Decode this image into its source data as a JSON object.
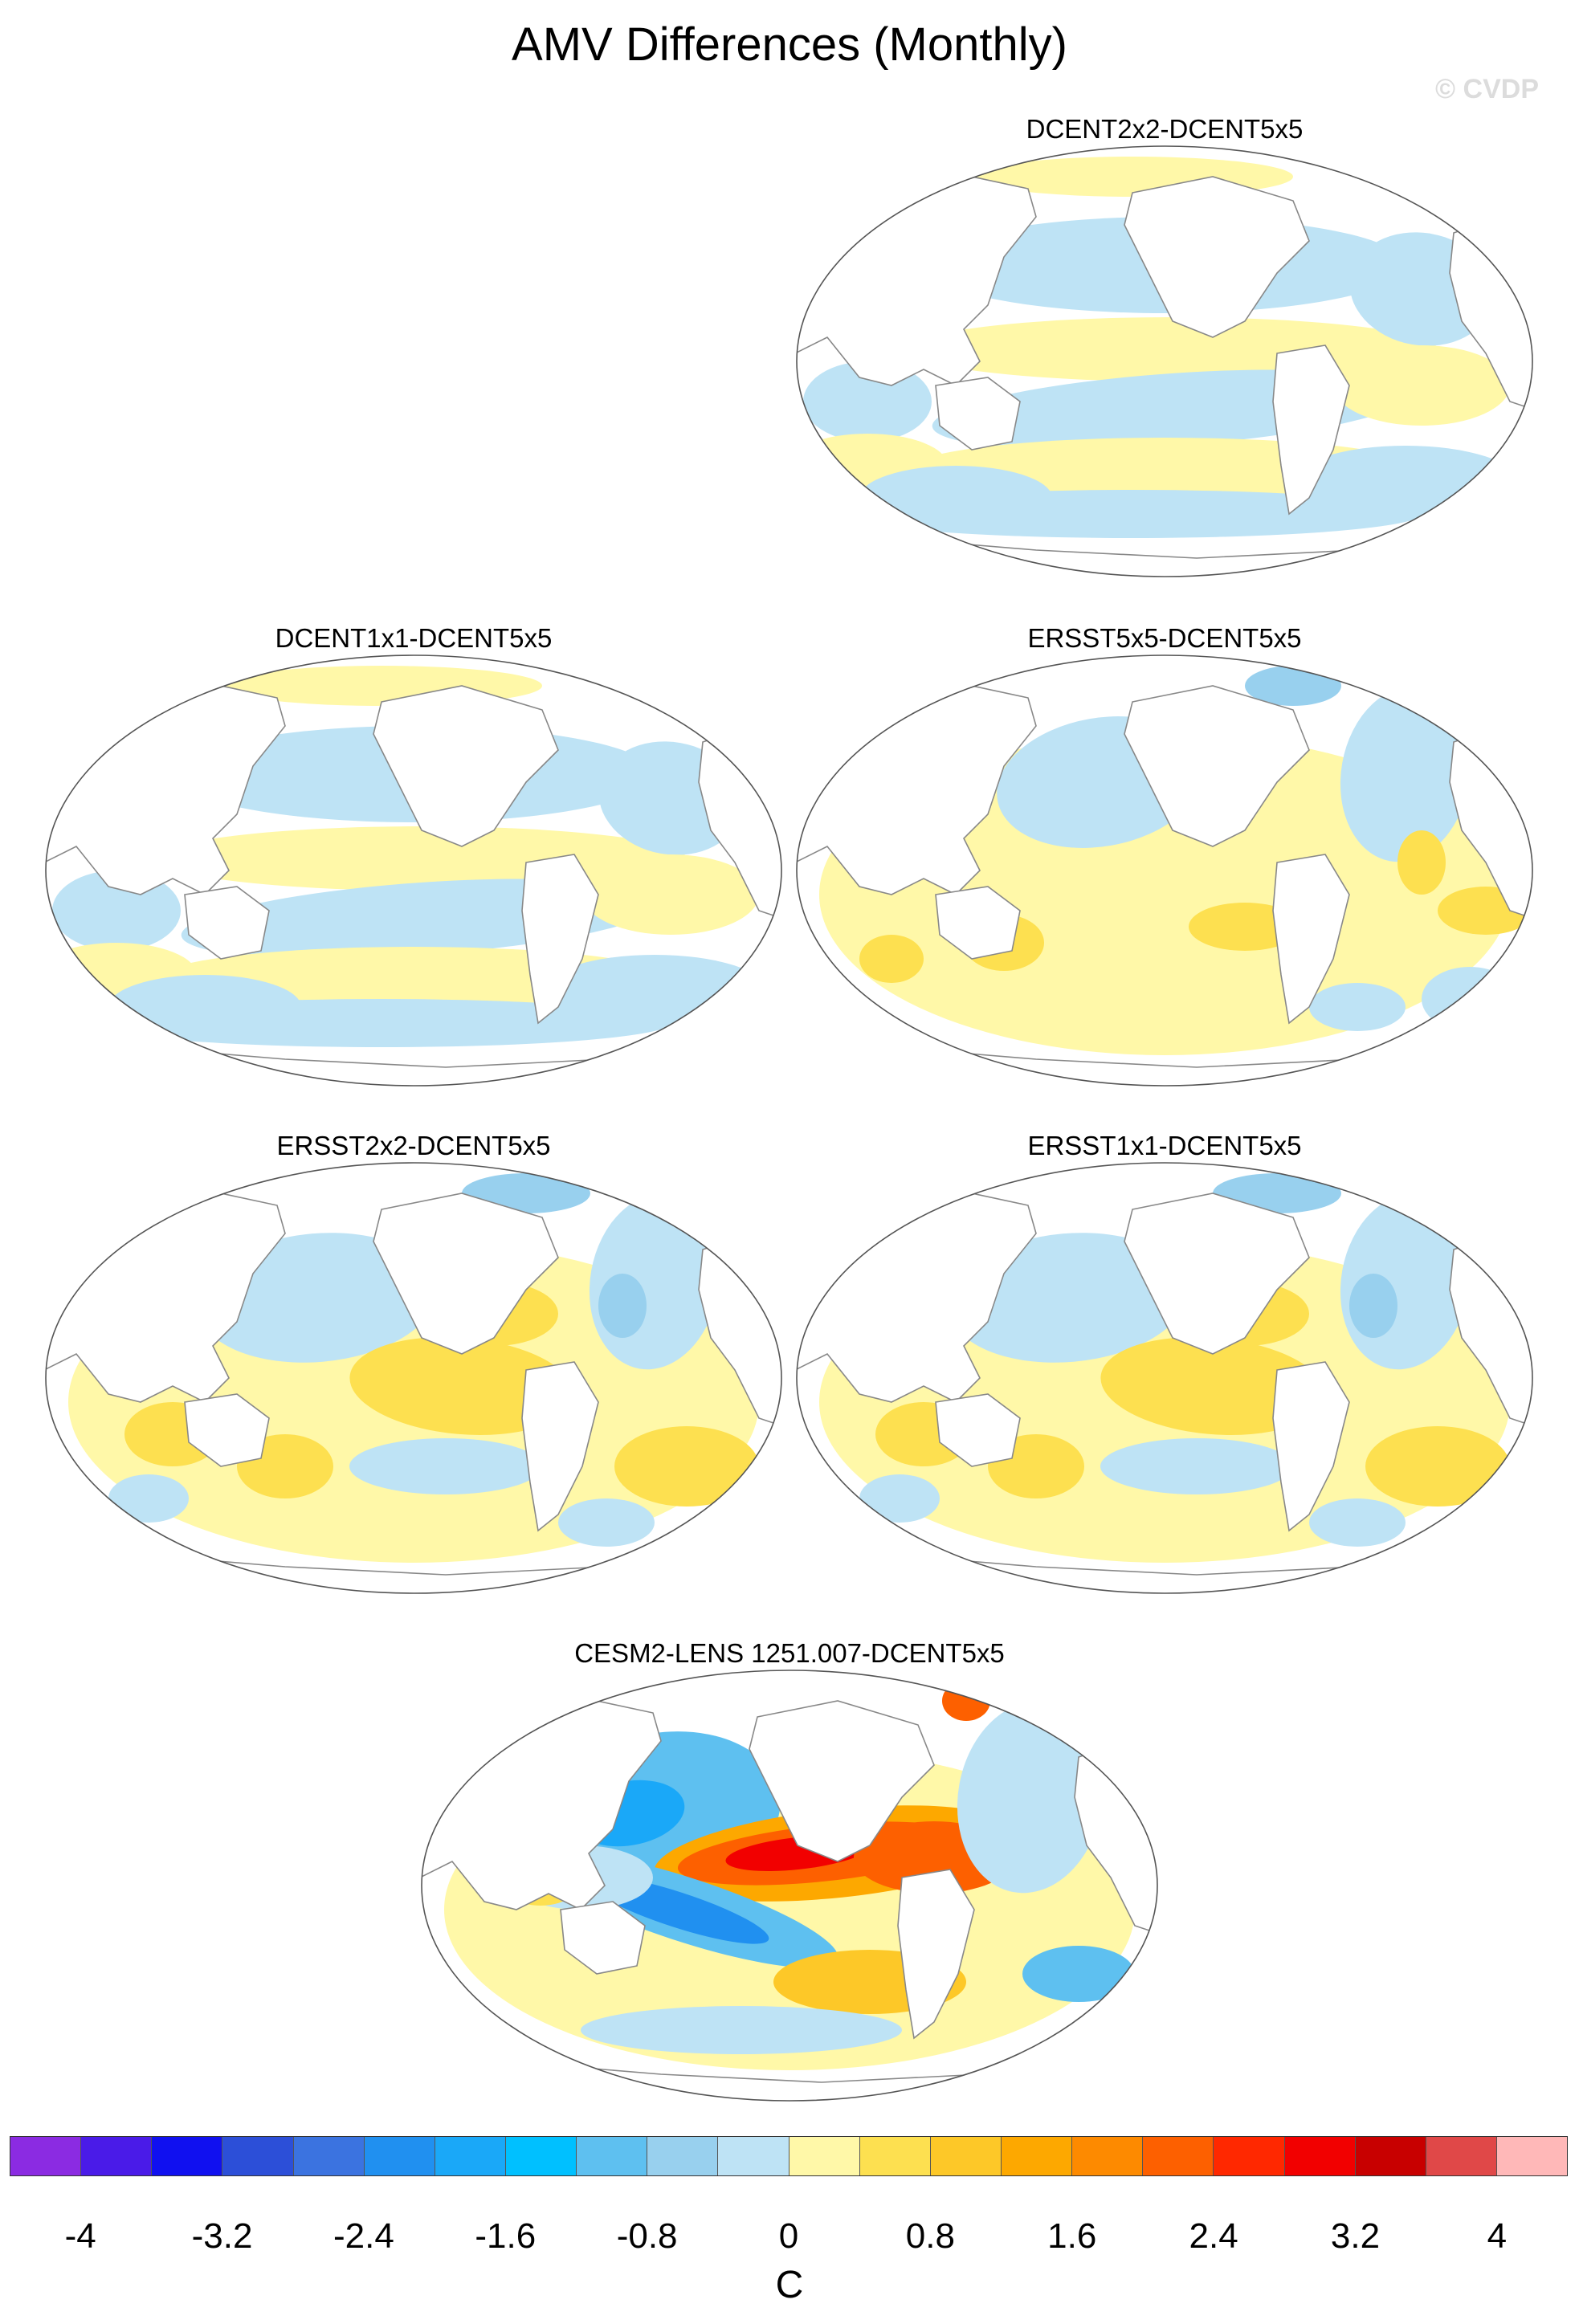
{
  "title": "AMV Differences (Monthly)",
  "watermark": "© CVDP",
  "panels": [
    {
      "title": "DCENT2x2-DCENT5x5",
      "pattern": "banded"
    },
    {
      "title": "DCENT1x1-DCENT5x5",
      "pattern": "banded"
    },
    {
      "title": "ERSST5x5-DCENT5x5",
      "pattern": "warm"
    },
    {
      "title": "ERSST2x2-DCENT5x5",
      "pattern": "warm-blue"
    },
    {
      "title": "ERSST1x1-DCENT5x5",
      "pattern": "warm-blue"
    },
    {
      "title": "CESM2-LENS 1251.007-DCENT5x5",
      "pattern": "enso"
    }
  ],
  "colorbar": {
    "unit": "C",
    "tick_labels": [
      "-4",
      "-3.2",
      "-2.4",
      "-1.6",
      "-0.8",
      "0",
      "0.8",
      "1.6",
      "2.4",
      "3.2",
      "4"
    ],
    "colors": [
      "#8b2be2",
      "#4a1be8",
      "#1010f0",
      "#2c4fd8",
      "#3b73e0",
      "#2090f0",
      "#1aa8f8",
      "#00c0ff",
      "#5ec0f0",
      "#98d0ee",
      "#bee3f5",
      "#fff8a8",
      "#fde050",
      "#fdc828",
      "#fda800",
      "#fd8a00",
      "#fd6000",
      "#ff2800",
      "#f20000",
      "#c80000",
      "#e04848",
      "#ffb8b8"
    ]
  }
}
